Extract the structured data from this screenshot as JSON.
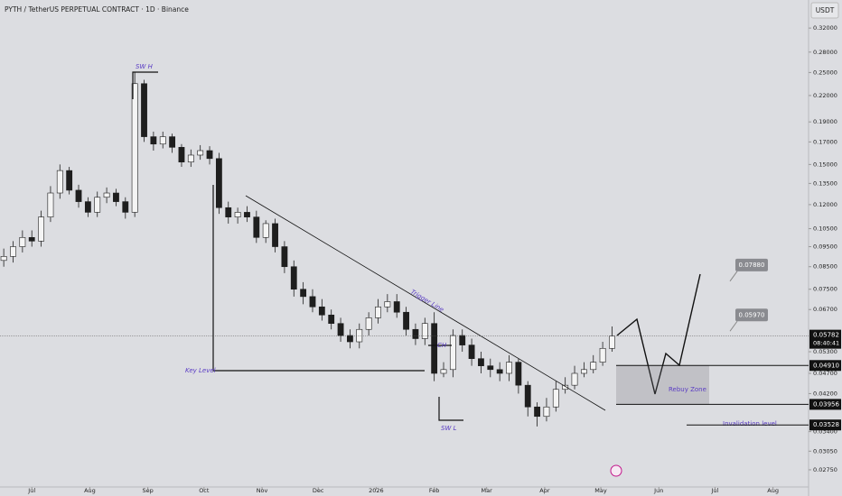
{
  "chart_data": {
    "type": "candlestick",
    "title": "PYTH / TetherUS PERPETUAL CONTRACT · 1D · Binance",
    "currency": "USDT",
    "log_scale": true,
    "x": [
      2,
      7,
      12,
      17,
      22,
      27,
      32,
      37,
      42,
      47,
      52,
      57,
      62,
      67,
      72,
      77,
      82,
      87,
      92,
      97,
      102,
      107,
      112,
      117,
      122,
      127,
      132,
      137,
      142,
      147,
      152,
      157,
      162,
      167,
      172,
      177,
      182,
      187,
      192,
      197,
      202,
      207,
      212,
      217,
      222,
      227,
      232,
      237,
      242,
      247,
      252,
      257,
      262,
      267,
      272,
      277,
      282,
      287,
      292,
      297,
      302,
      307,
      312,
      317,
      322,
      327
    ],
    "open": [
      0.088,
      0.09,
      0.095,
      0.1,
      0.098,
      0.112,
      0.128,
      0.145,
      0.13,
      0.122,
      0.115,
      0.125,
      0.128,
      0.122,
      0.115,
      0.235,
      0.175,
      0.168,
      0.175,
      0.165,
      0.152,
      0.158,
      0.162,
      0.155,
      0.118,
      0.112,
      0.115,
      0.112,
      0.1,
      0.108,
      0.095,
      0.085,
      0.075,
      0.072,
      0.068,
      0.065,
      0.062,
      0.058,
      0.056,
      0.06,
      0.064,
      0.068,
      0.07,
      0.066,
      0.06,
      0.057,
      0.062,
      0.047,
      0.048,
      0.058,
      0.055,
      0.051,
      0.049,
      0.048,
      0.047,
      0.05,
      0.044,
      0.039,
      0.037,
      0.039,
      0.043,
      0.044,
      0.047,
      0.048,
      0.05,
      0.054
    ],
    "high": [
      0.094,
      0.098,
      0.104,
      0.104,
      0.116,
      0.133,
      0.15,
      0.148,
      0.134,
      0.125,
      0.129,
      0.132,
      0.131,
      0.125,
      0.25,
      0.24,
      0.18,
      0.18,
      0.178,
      0.168,
      0.163,
      0.167,
      0.166,
      0.16,
      0.122,
      0.118,
      0.119,
      0.116,
      0.11,
      0.111,
      0.098,
      0.088,
      0.078,
      0.075,
      0.071,
      0.067,
      0.064,
      0.06,
      0.062,
      0.066,
      0.071,
      0.073,
      0.073,
      0.068,
      0.062,
      0.064,
      0.066,
      0.05,
      0.06,
      0.06,
      0.057,
      0.053,
      0.051,
      0.05,
      0.052,
      0.051,
      0.045,
      0.04,
      0.041,
      0.045,
      0.046,
      0.049,
      0.05,
      0.052,
      0.056,
      0.061
    ],
    "low": [
      0.085,
      0.087,
      0.092,
      0.095,
      0.095,
      0.109,
      0.124,
      0.127,
      0.118,
      0.112,
      0.112,
      0.121,
      0.119,
      0.111,
      0.112,
      0.17,
      0.162,
      0.164,
      0.16,
      0.148,
      0.148,
      0.154,
      0.15,
      0.114,
      0.108,
      0.108,
      0.109,
      0.097,
      0.097,
      0.092,
      0.082,
      0.072,
      0.069,
      0.066,
      0.063,
      0.06,
      0.056,
      0.054,
      0.054,
      0.058,
      0.062,
      0.066,
      0.064,
      0.058,
      0.055,
      0.055,
      0.045,
      0.046,
      0.046,
      0.053,
      0.049,
      0.047,
      0.046,
      0.045,
      0.045,
      0.042,
      0.037,
      0.035,
      0.036,
      0.038,
      0.042,
      0.043,
      0.046,
      0.047,
      0.049,
      0.053
    ],
    "close": [
      0.09,
      0.095,
      0.1,
      0.098,
      0.112,
      0.128,
      0.145,
      0.13,
      0.122,
      0.115,
      0.125,
      0.128,
      0.122,
      0.115,
      0.235,
      0.175,
      0.168,
      0.175,
      0.165,
      0.152,
      0.158,
      0.162,
      0.155,
      0.118,
      0.112,
      0.115,
      0.112,
      0.1,
      0.108,
      0.095,
      0.085,
      0.075,
      0.072,
      0.068,
      0.065,
      0.062,
      0.058,
      0.056,
      0.06,
      0.064,
      0.068,
      0.07,
      0.066,
      0.06,
      0.057,
      0.062,
      0.047,
      0.048,
      0.058,
      0.055,
      0.051,
      0.049,
      0.048,
      0.047,
      0.05,
      0.044,
      0.039,
      0.037,
      0.039,
      0.043,
      0.044,
      0.047,
      0.048,
      0.05,
      0.054,
      0.0578
    ],
    "up_color": "#f4f4f4",
    "down_color": "#1e1e1e",
    "xlim": [
      0,
      432
    ],
    "xticks": [
      {
        "value": 17,
        "label": "Jul"
      },
      {
        "value": 48,
        "label": "Aug"
      },
      {
        "value": 79,
        "label": "Sep"
      },
      {
        "value": 109,
        "label": "Oct"
      },
      {
        "value": 140,
        "label": "Nov"
      },
      {
        "value": 170,
        "label": "Dec"
      },
      {
        "value": 201,
        "label": "2026"
      },
      {
        "value": 232,
        "label": "Feb"
      },
      {
        "value": 260,
        "label": "Mar"
      },
      {
        "value": 291,
        "label": "Apr"
      },
      {
        "value": 321,
        "label": "May"
      },
      {
        "value": 352,
        "label": "Jun"
      },
      {
        "value": 382,
        "label": "Jul"
      },
      {
        "value": 413,
        "label": "Aug"
      }
    ],
    "ylim": [
      0.025,
      0.374
    ],
    "yticks": [
      {
        "value": 0.32,
        "label": "0.32000"
      },
      {
        "value": 0.28,
        "label": "0.28000"
      },
      {
        "value": 0.25,
        "label": "0.25000"
      },
      {
        "value": 0.22,
        "label": "0.22000"
      },
      {
        "value": 0.19,
        "label": "0.19000"
      },
      {
        "value": 0.17,
        "label": "0.17000"
      },
      {
        "value": 0.15,
        "label": "0.15000"
      },
      {
        "value": 0.135,
        "label": "0.13500"
      },
      {
        "value": 0.12,
        "label": "0.12000"
      },
      {
        "value": 0.105,
        "label": "0.10500"
      },
      {
        "value": 0.095,
        "label": "0.09500"
      },
      {
        "value": 0.085,
        "label": "0.08500"
      },
      {
        "value": 0.075,
        "label": "0.07500"
      },
      {
        "value": 0.067,
        "label": "0.06700"
      },
      {
        "value": 0.053,
        "label": "0.05300"
      },
      {
        "value": 0.047,
        "label": "0.04700"
      },
      {
        "value": 0.042,
        "label": "0.04200"
      },
      {
        "value": 0.034,
        "label": "0.03400"
      },
      {
        "value": 0.0305,
        "label": "0.03050"
      },
      {
        "value": 0.0275,
        "label": "0.02750"
      }
    ],
    "current_price": {
      "value": 0.05782,
      "label": "0.05782"
    },
    "countdown": "08:40:41",
    "levels": [
      {
        "value": 0.0491,
        "label": "0.04910"
      },
      {
        "value": 0.03956,
        "label": "0.03956"
      },
      {
        "value": 0.03528,
        "label": "0.03528"
      }
    ],
    "targets": [
      {
        "value": 0.0788,
        "label": "0.07880"
      },
      {
        "value": 0.0597,
        "label": "0.05970"
      }
    ],
    "annotations": [
      "SW H",
      "SW L",
      "Key Level",
      "Trigger Line",
      "CH",
      "Rebuy Zone",
      "Invalidation level"
    ]
  }
}
